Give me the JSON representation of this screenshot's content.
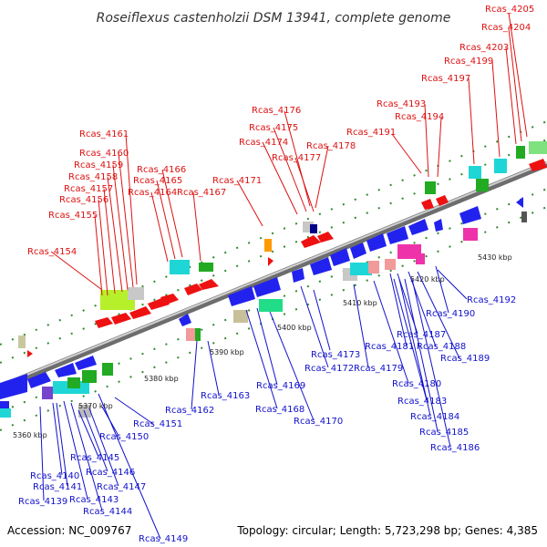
{
  "title": "Roseiflexus castenholzii DSM 13941, complete genome",
  "footer": {
    "accession": "Accession: NC_009767",
    "topology": "Topology: circular; Length: 5,723,298 bp; Genes: 4,385"
  },
  "colors": {
    "top_strand_line": "#dd1111",
    "bottom_strand_line": "#1111cc",
    "genome_track": "#888888",
    "tick_dots": "#228822"
  },
  "kbp_labels": [
    "5360 kbp",
    "5370 kbp",
    "5380 kbp",
    "5390 kbp",
    "5400 kbp",
    "5410 kbp",
    "5420 kbp",
    "5430 kbp"
  ],
  "top_labels": [
    "Rcas_4205",
    "Rcas_4204",
    "Rcas_4203",
    "Rcas_4199",
    "Rcas_4197",
    "Rcas_4193",
    "Rcas_4194",
    "Rcas_4191",
    "Rcas_4176",
    "Rcas_4175",
    "Rcas_4174",
    "Rcas_4177",
    "Rcas_4178",
    "Rcas_4171",
    "Rcas_4161",
    "Rcas_4160",
    "Rcas_4159",
    "Rcas_4158",
    "Rcas_4157",
    "Rcas_4156",
    "Rcas_4155",
    "Rcas_4166",
    "Rcas_4165",
    "Rcas_4164",
    "Rcas_4167",
    "Rcas_4154"
  ],
  "bottom_labels": [
    "Rcas_4192",
    "Rcas_4190",
    "Rcas_4187",
    "Rcas_4181",
    "Rcas_4188",
    "Rcas_4189",
    "Rcas_4173",
    "Rcas_4172",
    "Rcas_4179",
    "Rcas_4180",
    "Rcas_4183",
    "Rcas_4184",
    "Rcas_4185",
    "Rcas_4186",
    "Rcas_4169",
    "Rcas_4168",
    "Rcas_4170",
    "Rcas_4163",
    "Rcas_4162",
    "Rcas_4151",
    "Rcas_4150",
    "Rcas_4145",
    "Rcas_4146",
    "Rcas_4147",
    "Rcas_4140",
    "Rcas_4141",
    "Rcas_4143",
    "Rcas_4139",
    "Rcas_4144",
    "Rcas_4149"
  ]
}
